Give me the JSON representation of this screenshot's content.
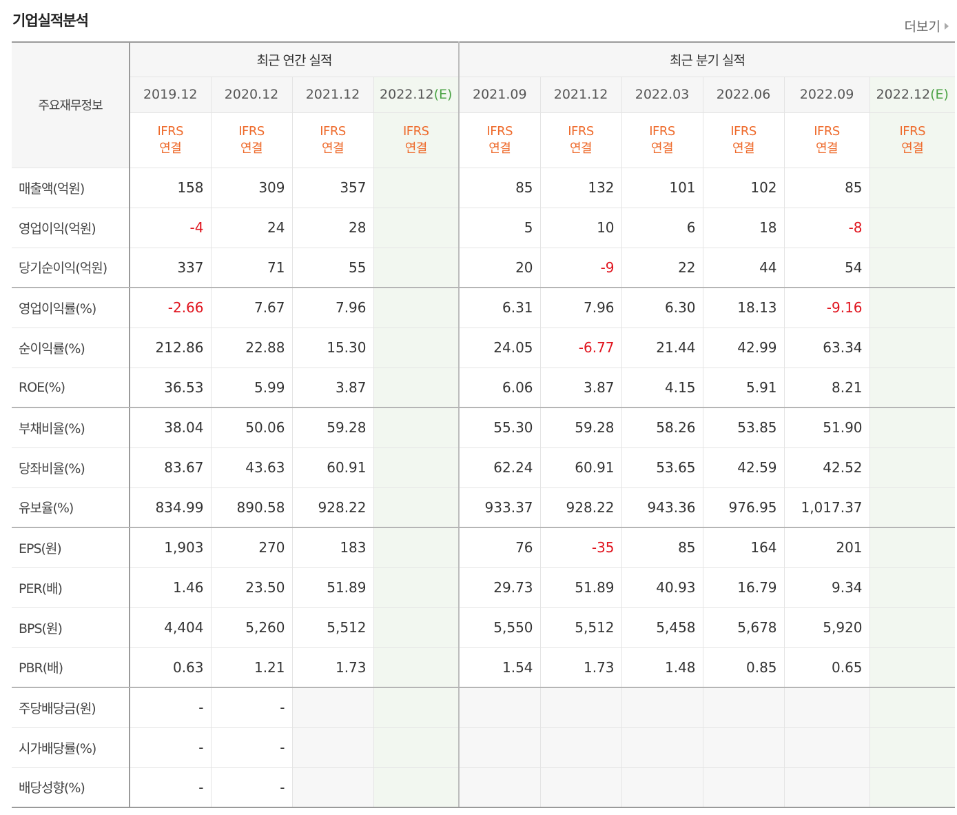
{
  "section_title": "기업실적분석",
  "more_label": "더보기",
  "header": {
    "corner_label": "주요재무정보",
    "annual_label": "최근 연간 실적",
    "quarter_label": "최근 분기 실적",
    "annual_periods": [
      {
        "date": "2019.12",
        "est": ""
      },
      {
        "date": "2020.12",
        "est": ""
      },
      {
        "date": "2021.12",
        "est": ""
      },
      {
        "date": "2022.12",
        "est": "(E)"
      }
    ],
    "quarter_periods": [
      {
        "date": "2021.09",
        "est": ""
      },
      {
        "date": "2021.12",
        "est": ""
      },
      {
        "date": "2022.03",
        "est": ""
      },
      {
        "date": "2022.06",
        "est": ""
      },
      {
        "date": "2022.09",
        "est": ""
      },
      {
        "date": "2022.12",
        "est": "(E)"
      }
    ],
    "accounting_line1": "IFRS",
    "accounting_line2": "연결"
  },
  "rows": [
    {
      "label": "매출액(억원)",
      "values": [
        "158",
        "309",
        "357",
        "",
        "85",
        "132",
        "101",
        "102",
        "85",
        ""
      ],
      "group_end": false
    },
    {
      "label": "영업이익(억원)",
      "values": [
        "-4",
        "24",
        "28",
        "",
        "5",
        "10",
        "6",
        "18",
        "-8",
        ""
      ],
      "group_end": false
    },
    {
      "label": "당기순이익(억원)",
      "values": [
        "337",
        "71",
        "55",
        "",
        "20",
        "-9",
        "22",
        "44",
        "54",
        ""
      ],
      "group_end": true
    },
    {
      "label": "영업이익률(%)",
      "values": [
        "-2.66",
        "7.67",
        "7.96",
        "",
        "6.31",
        "7.96",
        "6.30",
        "18.13",
        "-9.16",
        ""
      ],
      "group_end": false
    },
    {
      "label": "순이익률(%)",
      "values": [
        "212.86",
        "22.88",
        "15.30",
        "",
        "24.05",
        "-6.77",
        "21.44",
        "42.99",
        "63.34",
        ""
      ],
      "group_end": false
    },
    {
      "label": "ROE(%)",
      "values": [
        "36.53",
        "5.99",
        "3.87",
        "",
        "6.06",
        "3.87",
        "4.15",
        "5.91",
        "8.21",
        ""
      ],
      "group_end": true
    },
    {
      "label": "부채비율(%)",
      "values": [
        "38.04",
        "50.06",
        "59.28",
        "",
        "55.30",
        "59.28",
        "58.26",
        "53.85",
        "51.90",
        ""
      ],
      "group_end": false
    },
    {
      "label": "당좌비율(%)",
      "values": [
        "83.67",
        "43.63",
        "60.91",
        "",
        "62.24",
        "60.91",
        "53.65",
        "42.59",
        "42.52",
        ""
      ],
      "group_end": false
    },
    {
      "label": "유보율(%)",
      "values": [
        "834.99",
        "890.58",
        "928.22",
        "",
        "933.37",
        "928.22",
        "943.36",
        "976.95",
        "1,017.37",
        ""
      ],
      "group_end": true
    },
    {
      "label": "EPS(원)",
      "values": [
        "1,903",
        "270",
        "183",
        "",
        "76",
        "-35",
        "85",
        "164",
        "201",
        ""
      ],
      "group_end": false
    },
    {
      "label": "PER(배)",
      "values": [
        "1.46",
        "23.50",
        "51.89",
        "",
        "29.73",
        "51.89",
        "40.93",
        "16.79",
        "9.34",
        ""
      ],
      "group_end": false
    },
    {
      "label": "BPS(원)",
      "values": [
        "4,404",
        "5,260",
        "5,512",
        "",
        "5,550",
        "5,512",
        "5,458",
        "5,678",
        "5,920",
        ""
      ],
      "group_end": false
    },
    {
      "label": "PBR(배)",
      "values": [
        "0.63",
        "1.21",
        "1.73",
        "",
        "1.54",
        "1.73",
        "1.48",
        "0.85",
        "0.65",
        ""
      ],
      "group_end": true
    },
    {
      "label": "주당배당금(원)",
      "values": [
        "-",
        "-",
        "",
        "",
        "",
        "",
        "",
        "",
        "",
        ""
      ],
      "group_end": false,
      "dividend": true
    },
    {
      "label": "시가배당률(%)",
      "values": [
        "-",
        "-",
        "",
        "",
        "",
        "",
        "",
        "",
        "",
        ""
      ],
      "group_end": false,
      "dividend": true
    },
    {
      "label": "배당성향(%)",
      "values": [
        "-",
        "-",
        "",
        "",
        "",
        "",
        "",
        "",
        "",
        ""
      ],
      "group_end": false,
      "dividend": true
    }
  ],
  "colors": {
    "negative": "#e0141e",
    "accounting": "#ee6a2b",
    "estimate": "#4ca346"
  }
}
